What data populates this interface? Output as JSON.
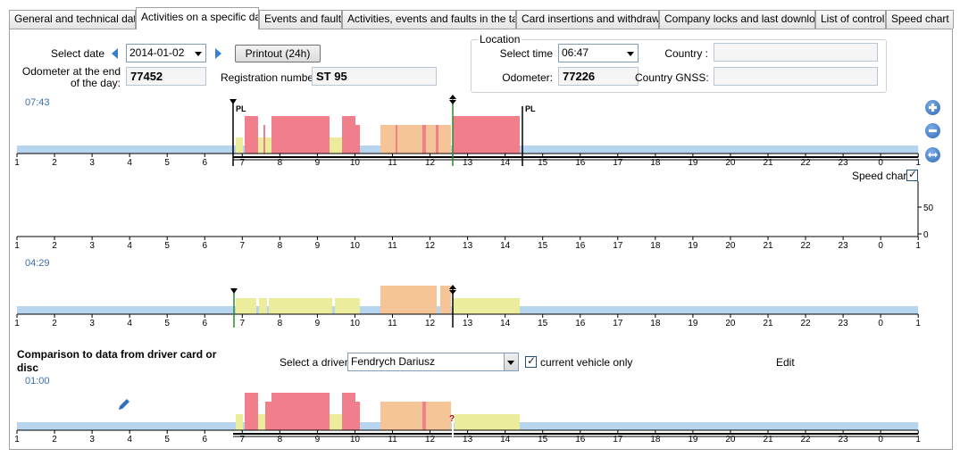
{
  "tabs": [
    {
      "label": "General and technical data",
      "active": false
    },
    {
      "label": "Activities on a specific day",
      "active": true
    },
    {
      "label": "Events and faults",
      "active": false
    },
    {
      "label": "Activities, events and faults in the table",
      "active": false
    },
    {
      "label": "Card insertions and withdrawals",
      "active": false
    },
    {
      "label": "Company locks and last download",
      "active": false
    },
    {
      "label": "List of controls",
      "active": false
    },
    {
      "label": "Speed chart",
      "active": false
    }
  ],
  "form": {
    "select_date_label": "Select date",
    "date_value": "2014-01-02",
    "printout_label": "Printout (24h)",
    "odometer_end_label": "Odometer at the end of the day:",
    "odometer_end_value": "77452",
    "registration_label": "Registration number:",
    "registration_value": "ST 95"
  },
  "location": {
    "title": "Location",
    "select_time_label": "Select time",
    "time_value": "06:47",
    "country_label": "Country :",
    "country_value": "",
    "odometer_label": "Odometer:",
    "odometer_value": "77226",
    "country_gnss_label": "Country GNSS:",
    "country_gnss_value": ""
  },
  "axis_labels": [
    "1",
    "2",
    "3",
    "4",
    "5",
    "6",
    "7",
    "8",
    "9",
    "10",
    "11",
    "12",
    "13",
    "14",
    "15",
    "16",
    "17",
    "18",
    "19",
    "20",
    "21",
    "22",
    "23",
    "0",
    "1"
  ],
  "charts": {
    "top_total_time": "07:43",
    "place_marker_start": "PL",
    "place_marker_end": "PL",
    "speed_chart_label": "Speed chart",
    "speed_chart_checked": true,
    "speed_ticks": [
      "50",
      "0"
    ],
    "middle_total_time": "04:29",
    "bottom_total_time": "01:00",
    "unknown_marker": "?"
  },
  "comparison": {
    "heading": "Comparison to data from driver card or disc",
    "select_driver_label": "Select a driver",
    "driver_value": "Fendrych Dariusz",
    "current_vehicle_label": "current vehicle only",
    "current_vehicle_checked": true,
    "edit_label": "Edit"
  },
  "colors": {
    "rest": "#b8d5ef",
    "driving": "#f17f8b",
    "work": "#f5c497",
    "availability": "#ecec9d",
    "accent_blue": "#3a7fd0"
  },
  "icons": [
    "chevron-left-icon",
    "chevron-right-icon",
    "zoom-in-icon",
    "zoom-out-icon",
    "fit-width-icon",
    "pencil-icon",
    "marker-icon"
  ]
}
